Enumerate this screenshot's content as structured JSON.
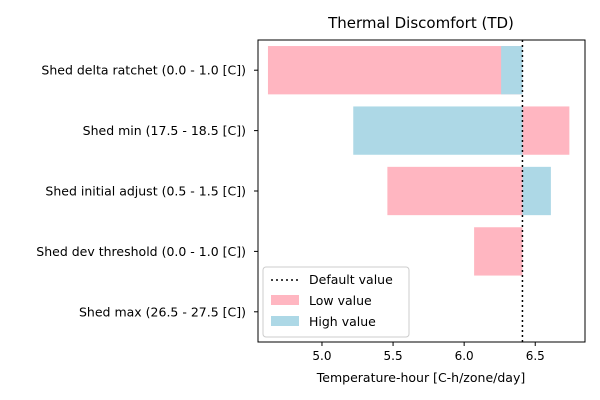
{
  "chart_data": {
    "type": "bar",
    "orientation": "horizontal",
    "title": "Thermal Discomfort (TD)",
    "xlabel": "Temperature-hour [C-h/zone/day]",
    "ylabel": "",
    "xlim": [
      4.55,
      6.85
    ],
    "xticks": [
      "5.0",
      "5.5",
      "6.0",
      "6.5"
    ],
    "xtick_values": [
      5.0,
      5.5,
      6.0,
      6.5
    ],
    "default_value": 6.41,
    "categories": [
      "Shed delta ratchet (0.0 - 1.0 [C])",
      "Shed min (17.5 - 18.5 [C])",
      "Shed initial adjust (0.5 - 1.5 [C])",
      "Shed dev threshold (0.0 - 1.0 [C])",
      "Shed max (26.5 - 27.5 [C])"
    ],
    "series": [
      {
        "name": "Low value",
        "color": "#ffb6c1",
        "values": [
          4.62,
          6.74,
          5.46,
          6.07,
          6.41
        ]
      },
      {
        "name": "High value",
        "color": "#add8e6",
        "values": [
          6.26,
          5.22,
          6.61,
          6.41,
          6.41
        ]
      }
    ],
    "legend": {
      "placement": "lower-left",
      "entries": [
        "Default value",
        "Low value",
        "High value"
      ]
    },
    "grid": false
  }
}
